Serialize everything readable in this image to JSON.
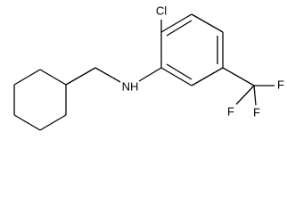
{
  "atoms": [
    {
      "label": "Cl"
    },
    {
      "label": "NH"
    },
    {
      "label": "F"
    },
    {
      "label": "F"
    },
    {
      "label": "F"
    }
  ]
}
